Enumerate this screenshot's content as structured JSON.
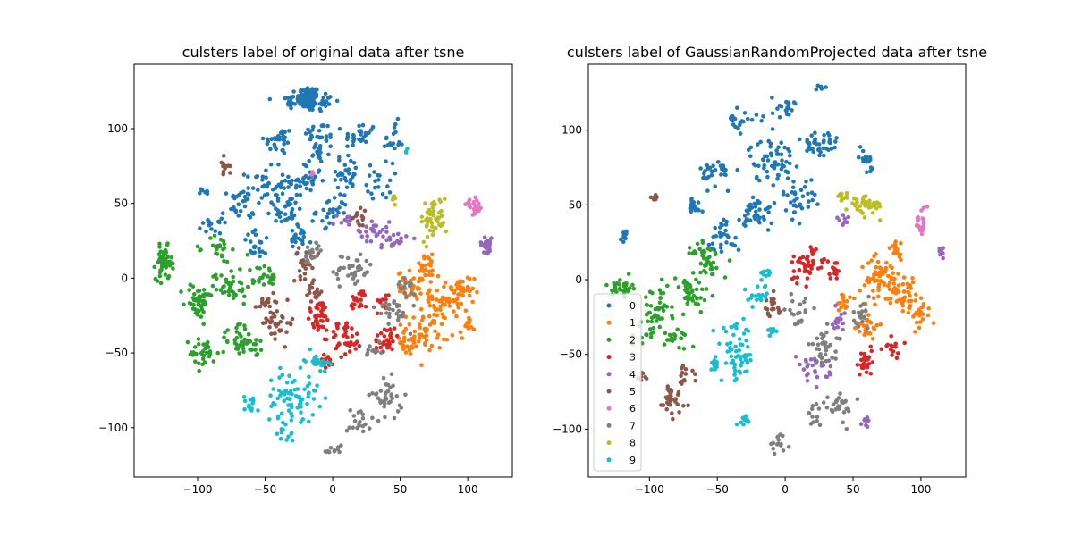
{
  "chart_data": [
    {
      "type": "scatter",
      "title": "culsters label of original data after tsne",
      "xlabel": "",
      "ylabel": "",
      "xlim": [
        -147,
        133
      ],
      "ylim": [
        -133,
        143
      ],
      "x_ticks": [
        -100,
        -50,
        0,
        50,
        100
      ],
      "x_tick_labels": [
        "−100",
        "−50",
        "0",
        "50",
        "100"
      ],
      "y_ticks": [
        -100,
        -50,
        0,
        50,
        100
      ],
      "y_tick_labels": [
        "−100",
        "−50",
        "0",
        "50",
        "100"
      ],
      "grid": false,
      "legend": null,
      "clusters": [
        {
          "label": "0",
          "blobs": [
            [
              -18,
              120,
              7,
              7,
              90
            ],
            [
              -32,
              118,
              6,
              6,
              16
            ],
            [
              -5,
              118,
              6,
              6,
              16
            ],
            [
              -40,
              92,
              9,
              8,
              30
            ],
            [
              -10,
              95,
              10,
              8,
              30
            ],
            [
              20,
              95,
              10,
              8,
              28
            ],
            [
              45,
              92,
              6,
              10,
              18
            ],
            [
              -50,
              62,
              12,
              10,
              38
            ],
            [
              -20,
              65,
              10,
              10,
              34
            ],
            [
              10,
              70,
              10,
              10,
              30
            ],
            [
              35,
              65,
              8,
              10,
              20
            ],
            [
              -70,
              48,
              10,
              10,
              28
            ],
            [
              -35,
              45,
              12,
              10,
              36
            ],
            [
              0,
              45,
              10,
              8,
              26
            ],
            [
              -90,
              35,
              6,
              4,
              14
            ],
            [
              -55,
              22,
              10,
              8,
              22
            ],
            [
              -25,
              25,
              8,
              8,
              20
            ],
            [
              -95,
              58,
              4,
              3,
              8
            ],
            [
              -10,
              82,
              6,
              6,
              16
            ]
          ]
        },
        {
          "label": "1",
          "blobs": [
            [
              60,
              -5,
              10,
              8,
              45
            ],
            [
              82,
              -15,
              12,
              10,
              50
            ],
            [
              70,
              -35,
              14,
              10,
              50
            ],
            [
              95,
              -10,
              8,
              10,
              28
            ],
            [
              55,
              -45,
              8,
              6,
              22
            ],
            [
              70,
              8,
              8,
              6,
              20
            ],
            [
              100,
              -30,
              4,
              8,
              12
            ]
          ]
        },
        {
          "label": "2",
          "blobs": [
            [
              -125,
              10,
              5,
              9,
              60
            ],
            [
              -100,
              -15,
              8,
              10,
              45
            ],
            [
              -75,
              -5,
              12,
              10,
              45
            ],
            [
              -95,
              -50,
              9,
              9,
              32
            ],
            [
              -70,
              -40,
              10,
              10,
              32
            ],
            [
              -85,
              20,
              8,
              8,
              24
            ],
            [
              -50,
              0,
              8,
              8,
              22
            ],
            [
              -58,
              -45,
              6,
              6,
              14
            ]
          ]
        },
        {
          "label": "3",
          "blobs": [
            [
              -10,
              -25,
              8,
              10,
              45
            ],
            [
              10,
              -40,
              10,
              10,
              40
            ],
            [
              20,
              -15,
              6,
              6,
              20
            ],
            [
              40,
              -40,
              8,
              8,
              28
            ],
            [
              -5,
              -55,
              5,
              4,
              14
            ],
            [
              38,
              -15,
              4,
              6,
              10
            ]
          ]
        },
        {
          "label": "4",
          "blobs": [
            [
              114,
              22,
              4,
              4,
              34
            ],
            [
              30,
              32,
              10,
              6,
              26
            ],
            [
              45,
              25,
              8,
              6,
              20
            ],
            [
              10,
              40,
              5,
              3,
              10
            ]
          ]
        },
        {
          "label": "5",
          "blobs": [
            [
              -40,
              -30,
              10,
              10,
              34
            ],
            [
              -20,
              10,
              8,
              8,
              22
            ],
            [
              -15,
              -10,
              6,
              6,
              16
            ],
            [
              -80,
              75,
              3,
              6,
              12
            ],
            [
              -50,
              -15,
              6,
              6,
              14
            ],
            [
              20,
              40,
              6,
              5,
              12
            ]
          ]
        },
        {
          "label": "6",
          "blobs": [
            [
              105,
              48,
              5,
              4,
              26
            ],
            [
              -15,
              70,
              2,
              2,
              3
            ]
          ]
        },
        {
          "label": "7",
          "blobs": [
            [
              15,
              5,
              12,
              10,
              40
            ],
            [
              45,
              -20,
              10,
              10,
              30
            ],
            [
              40,
              -80,
              10,
              10,
              36
            ],
            [
              20,
              -95,
              8,
              8,
              20
            ],
            [
              0,
              -115,
              6,
              4,
              12
            ],
            [
              -15,
              15,
              8,
              6,
              18
            ],
            [
              30,
              -50,
              5,
              5,
              12
            ],
            [
              55,
              -5,
              6,
              6,
              14
            ]
          ]
        },
        {
          "label": "8",
          "blobs": [
            [
              75,
              40,
              8,
              12,
              48
            ],
            [
              45,
              55,
              3,
              4,
              6
            ]
          ]
        },
        {
          "label": "9",
          "blobs": [
            [
              -30,
              -80,
              16,
              14,
              75
            ],
            [
              -12,
              -55,
              7,
              5,
              24
            ],
            [
              -60,
              -85,
              6,
              6,
              14
            ],
            [
              -35,
              -105,
              5,
              4,
              10
            ],
            [
              55,
              85,
              2,
              2,
              3
            ]
          ]
        }
      ]
    },
    {
      "type": "scatter",
      "title": "culsters label of GaussianRandomProjected data after tsne",
      "xlabel": "",
      "ylabel": "",
      "xlim": [
        -145,
        133
      ],
      "ylim": [
        -132,
        144
      ],
      "x_ticks": [
        -100,
        -50,
        0,
        50,
        100
      ],
      "x_tick_labels": [
        "−100",
        "−50",
        "0",
        "50",
        "100"
      ],
      "y_ticks": [
        -100,
        -50,
        0,
        50,
        100
      ],
      "y_tick_labels": [
        "−100",
        "−50",
        "0",
        "50",
        "100"
      ],
      "grid": false,
      "legend": "lower-left",
      "clusters": [
        {
          "label": "0",
          "blobs": [
            [
              -10,
              80,
              14,
              12,
              60
            ],
            [
              25,
              90,
              12,
              10,
              40
            ],
            [
              -50,
              72,
              10,
              8,
              30
            ],
            [
              0,
              115,
              8,
              6,
              20
            ],
            [
              -30,
              105,
              8,
              6,
              16
            ],
            [
              -20,
              45,
              10,
              10,
              40
            ],
            [
              10,
              55,
              10,
              10,
              34
            ],
            [
              -45,
              30,
              10,
              10,
              30
            ],
            [
              60,
              80,
              6,
              8,
              18
            ],
            [
              -68,
              48,
              6,
              6,
              16
            ],
            [
              -118,
              30,
              3,
              3,
              10
            ],
            [
              25,
              128,
              3,
              2,
              6
            ],
            [
              -40,
              108,
              4,
              2,
              8
            ]
          ]
        },
        {
          "label": "1",
          "blobs": [
            [
              70,
              0,
              12,
              12,
              60
            ],
            [
              90,
              -10,
              10,
              12,
              44
            ],
            [
              60,
              -30,
              8,
              8,
              26
            ],
            [
              100,
              -25,
              6,
              8,
              18
            ],
            [
              80,
              20,
              8,
              6,
              18
            ],
            [
              45,
              -15,
              6,
              6,
              14
            ]
          ]
        },
        {
          "label": "2",
          "blobs": [
            [
              -120,
              -5,
              6,
              5,
              34
            ],
            [
              -95,
              -20,
              10,
              12,
              44
            ],
            [
              -70,
              -10,
              12,
              12,
              44
            ],
            [
              -55,
              10,
              10,
              8,
              24
            ],
            [
              -80,
              -40,
              8,
              6,
              20
            ],
            [
              -60,
              20,
              8,
              6,
              18
            ],
            [
              -103,
              -38,
              5,
              5,
              12
            ]
          ]
        },
        {
          "label": "3",
          "blobs": [
            [
              15,
              10,
              12,
              10,
              46
            ],
            [
              60,
              -55,
              8,
              8,
              24
            ],
            [
              80,
              -45,
              6,
              6,
              14
            ],
            [
              35,
              5,
              5,
              5,
              12
            ]
          ]
        },
        {
          "label": "4",
          "blobs": [
            [
              20,
              -60,
              10,
              8,
              28
            ],
            [
              40,
              -25,
              6,
              6,
              14
            ],
            [
              60,
              -95,
              3,
              3,
              8
            ],
            [
              115,
              18,
              3,
              3,
              10
            ],
            [
              45,
              40,
              4,
              3,
              8
            ]
          ]
        },
        {
          "label": "5",
          "blobs": [
            [
              -85,
              -80,
              10,
              12,
              34
            ],
            [
              -10,
              -20,
              8,
              8,
              18
            ],
            [
              -75,
              -65,
              6,
              6,
              14
            ],
            [
              -105,
              -65,
              4,
              3,
              8
            ],
            [
              -95,
              55,
              3,
              3,
              6
            ]
          ]
        },
        {
          "label": "6",
          "blobs": [
            [
              100,
              38,
              4,
              8,
              24
            ]
          ]
        },
        {
          "label": "7",
          "blobs": [
            [
              30,
              -45,
              10,
              10,
              34
            ],
            [
              40,
              -85,
              10,
              8,
              28
            ],
            [
              10,
              -20,
              8,
              8,
              20
            ],
            [
              -5,
              -110,
              6,
              4,
              14
            ],
            [
              55,
              -25,
              6,
              8,
              18
            ],
            [
              20,
              -90,
              6,
              6,
              12
            ]
          ]
        },
        {
          "label": "8",
          "blobs": [
            [
              60,
              50,
              10,
              5,
              44
            ],
            [
              42,
              55,
              4,
              3,
              10
            ]
          ]
        },
        {
          "label": "9",
          "blobs": [
            [
              -35,
              -50,
              10,
              16,
              60
            ],
            [
              -52,
              -57,
              3,
              3,
              16
            ],
            [
              -20,
              -10,
              6,
              6,
              16
            ],
            [
              -30,
              -95,
              4,
              3,
              10
            ],
            [
              -15,
              5,
              4,
              4,
              10
            ],
            [
              -10,
              -35,
              4,
              4,
              8
            ]
          ]
        }
      ]
    }
  ],
  "legend_entries": [
    "0",
    "1",
    "2",
    "3",
    "4",
    "5",
    "6",
    "7",
    "8",
    "9"
  ],
  "colors": [
    "#1f77b4",
    "#ff7f0e",
    "#2ca02c",
    "#d62728",
    "#9467bd",
    "#8c564b",
    "#e377c2",
    "#7f7f7f",
    "#bcbd22",
    "#17becf"
  ]
}
